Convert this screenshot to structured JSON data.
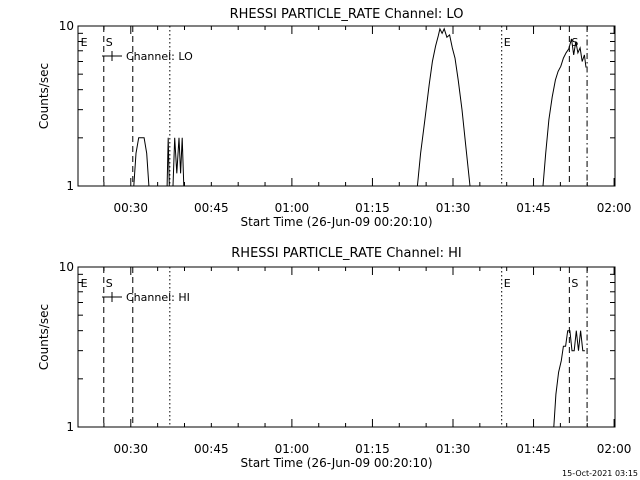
{
  "footer": {
    "timestamp": "15-Oct-2021 03:15"
  },
  "chart_data": [
    {
      "type": "line",
      "title": "RHESSI PARTICLE_RATE Channel: LO",
      "xlabel": "Start Time (26-Jun-09 00:20:10)",
      "ylabel": "Counts/sec",
      "x_unit": "minutes after 00:20:10",
      "xlim": [
        0,
        100
      ],
      "ylim": [
        1,
        10
      ],
      "yscale": "log",
      "x_tick_labels": [
        "00:30",
        "00:45",
        "01:00",
        "01:15",
        "01:30",
        "01:45",
        "02:00"
      ],
      "x_tick_values": [
        9.83,
        24.83,
        39.83,
        54.83,
        69.83,
        84.83,
        99.83
      ],
      "y_tick_labels": [
        "1",
        "10"
      ],
      "y_tick_values": [
        1,
        10
      ],
      "legend": {
        "label": "Channel: LO",
        "placement": "top-left"
      },
      "markers": [
        {
          "label": "E",
          "x": 0.5,
          "style": "none"
        },
        {
          "label": "S",
          "x": 4.8,
          "style": "dashed"
        },
        {
          "label": "",
          "x": 10.2,
          "style": "dashed"
        },
        {
          "label": "",
          "x": 17.1,
          "style": "dotted"
        },
        {
          "label": "E",
          "x": 78.9,
          "style": "dotted"
        },
        {
          "label": "S",
          "x": 91.5,
          "style": "dashed"
        },
        {
          "label": "",
          "x": 94.8,
          "style": "dashdot"
        }
      ],
      "series": [
        {
          "name": "Channel: LO",
          "segments": [
            [
              [
                10.4,
                1
              ],
              [
                10.8,
                1.6
              ],
              [
                11.3,
                2
              ],
              [
                12.3,
                2
              ],
              [
                12.8,
                1.6
              ],
              [
                13.2,
                1
              ]
            ],
            [
              [
                16.6,
                1
              ],
              [
                16.8,
                2
              ],
              [
                17.0,
                1
              ]
            ],
            [
              [
                17.7,
                1
              ],
              [
                18.0,
                2
              ],
              [
                18.4,
                1.2
              ],
              [
                18.8,
                2
              ],
              [
                19.1,
                1.2
              ],
              [
                19.4,
                2
              ],
              [
                19.7,
                1
              ]
            ],
            [
              [
                63.2,
                1
              ],
              [
                63.8,
                1.6
              ],
              [
                64.6,
                2.6
              ],
              [
                65.4,
                4.3
              ],
              [
                66.0,
                6.0
              ],
              [
                66.6,
                7.5
              ],
              [
                67.1,
                8.7
              ],
              [
                67.4,
                9.6
              ],
              [
                67.8,
                9.0
              ],
              [
                68.2,
                9.6
              ],
              [
                68.7,
                8.5
              ],
              [
                69.2,
                8.8
              ],
              [
                69.7,
                7.3
              ],
              [
                70.2,
                6.3
              ],
              [
                70.8,
                4.6
              ],
              [
                71.5,
                3.0
              ],
              [
                72.2,
                1.8
              ],
              [
                73.0,
                1
              ]
            ],
            [
              [
                86.6,
                1
              ],
              [
                87.1,
                1.6
              ],
              [
                87.7,
                2.6
              ],
              [
                88.3,
                3.6
              ],
              [
                88.9,
                4.6
              ],
              [
                89.4,
                5.2
              ],
              [
                89.9,
                5.6
              ],
              [
                90.4,
                6.3
              ],
              [
                90.9,
                6.8
              ],
              [
                91.4,
                7.2
              ],
              [
                91.9,
                8.3
              ],
              [
                92.3,
                6.6
              ],
              [
                92.7,
                8.0
              ],
              [
                93.1,
                6.8
              ],
              [
                93.5,
                7.3
              ],
              [
                93.9,
                6.0
              ],
              [
                94.3,
                6.6
              ],
              [
                94.6,
                5.5
              ]
            ]
          ]
        }
      ]
    },
    {
      "type": "line",
      "title": "RHESSI PARTICLE_RATE Channel: HI",
      "xlabel": "Start Time (26-Jun-09 00:20:10)",
      "ylabel": "Counts/sec",
      "x_unit": "minutes after 00:20:10",
      "xlim": [
        0,
        100
      ],
      "ylim": [
        1,
        10
      ],
      "yscale": "log",
      "x_tick_labels": [
        "00:30",
        "00:45",
        "01:00",
        "01:15",
        "01:30",
        "01:45",
        "02:00"
      ],
      "x_tick_values": [
        9.83,
        24.83,
        39.83,
        54.83,
        69.83,
        84.83,
        99.83
      ],
      "y_tick_labels": [
        "1",
        "10"
      ],
      "y_tick_values": [
        1,
        10
      ],
      "legend": {
        "label": "Channel: HI",
        "placement": "top-left"
      },
      "markers": [
        {
          "label": "E",
          "x": 0.5,
          "style": "none"
        },
        {
          "label": "S",
          "x": 4.8,
          "style": "dashed"
        },
        {
          "label": "",
          "x": 10.2,
          "style": "dashed"
        },
        {
          "label": "",
          "x": 17.1,
          "style": "dotted"
        },
        {
          "label": "E",
          "x": 78.9,
          "style": "dotted"
        },
        {
          "label": "S",
          "x": 91.5,
          "style": "dashed"
        },
        {
          "label": "",
          "x": 94.8,
          "style": "dashdot"
        }
      ],
      "series": [
        {
          "name": "Channel: HI",
          "segments": [
            [
              [
                88.6,
                1
              ],
              [
                89.0,
                1.6
              ],
              [
                89.5,
                2.2
              ],
              [
                90.0,
                2.6
              ],
              [
                90.4,
                3.2
              ],
              [
                90.8,
                3.2
              ],
              [
                91.2,
                4.0
              ],
              [
                91.6,
                4.0
              ],
              [
                92.0,
                3.0
              ],
              [
                92.4,
                3.0
              ],
              [
                92.8,
                4.0
              ],
              [
                93.2,
                3.0
              ],
              [
                93.6,
                4.0
              ],
              [
                94.0,
                3.0
              ],
              [
                94.4,
                3.0
              ]
            ]
          ]
        }
      ]
    }
  ]
}
